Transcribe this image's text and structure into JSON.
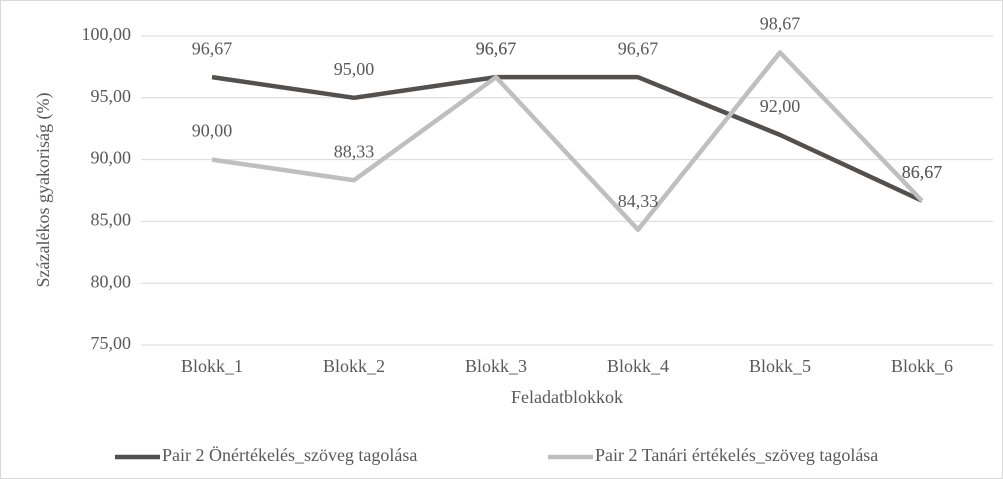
{
  "chart_data": {
    "type": "line",
    "x_label": "Feladatblokkok",
    "y_label": "Százalékos gyakoriság (%)",
    "categories": [
      "Blokk_1",
      "Blokk_2",
      "Blokk_3",
      "Blokk_4",
      "Blokk_5",
      "Blokk_6"
    ],
    "series": [
      {
        "name": "Pair 2 Önértékelés_szöveg tagolása",
        "color": "#54504d",
        "values": [
          96.67,
          95.0,
          96.67,
          96.67,
          92.0,
          86.67
        ],
        "value_labels": [
          "96,67",
          "95,00",
          "96,67",
          "96,67",
          "92,00",
          "86,67"
        ]
      },
      {
        "name": "Pair 2 Tanári értékelés_szöveg tagolása",
        "color": "#bfbfbf",
        "values": [
          90.0,
          88.33,
          96.67,
          84.33,
          98.67,
          86.67
        ],
        "value_labels": [
          "90,00",
          "88,33",
          "96,67",
          "84,33",
          "98,67",
          "86,67"
        ]
      }
    ],
    "ylim": [
      75,
      100
    ],
    "yticks": [
      {
        "value": 75,
        "label": "75,00"
      },
      {
        "value": 80,
        "label": "80,00"
      },
      {
        "value": 85,
        "label": "85,00"
      },
      {
        "value": 90,
        "label": "90,00"
      },
      {
        "value": 95,
        "label": "95,00"
      },
      {
        "value": 100,
        "label": "100,00"
      }
    ],
    "grid": true,
    "legend": "bottom"
  }
}
